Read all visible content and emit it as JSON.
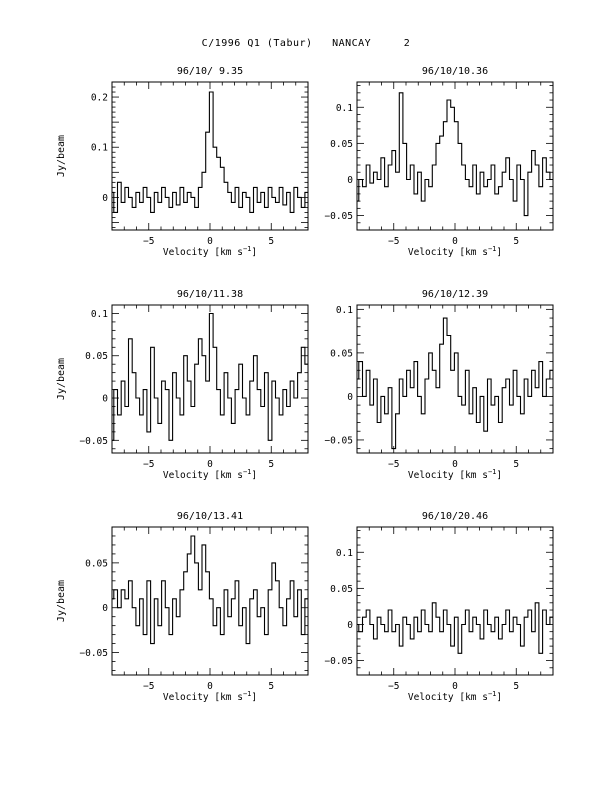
{
  "page": {
    "title": "C/1996 Q1 (Tabur)   NANCAY     2"
  },
  "chart_data": [
    {
      "type": "line",
      "title": "96/10/ 9.35",
      "xlabel": "Velocity [km s",
      "xlabel_sup": "−1",
      "xlabel_tail": "]",
      "ylabel": "Jy/beam",
      "xlim": [
        -8,
        8
      ],
      "ylim": [
        -0.065,
        0.23
      ],
      "xticks": [
        -5,
        0,
        5
      ],
      "xtick_labels": [
        "−5",
        "0",
        "5"
      ],
      "yticks": [
        0,
        0.1,
        0.2
      ],
      "ytick_labels": [
        "0",
        "0.1",
        "0.2"
      ],
      "x": [
        -8.0,
        -7.7,
        -7.4,
        -7.1,
        -6.8,
        -6.5,
        -6.2,
        -5.9,
        -5.6,
        -5.3,
        -5.0,
        -4.7,
        -4.4,
        -4.1,
        -3.8,
        -3.5,
        -3.2,
        -2.9,
        -2.6,
        -2.3,
        -2.0,
        -1.7,
        -1.4,
        -1.1,
        -0.8,
        -0.5,
        -0.2,
        0.1,
        0.4,
        0.7,
        1.0,
        1.3,
        1.6,
        1.9,
        2.2,
        2.5,
        2.8,
        3.1,
        3.4,
        3.7,
        4.0,
        4.3,
        4.6,
        4.9,
        5.2,
        5.5,
        5.8,
        6.1,
        6.4,
        6.7,
        7.0,
        7.3,
        7.6,
        7.9
      ],
      "y": [
        0.01,
        -0.03,
        0.03,
        -0.01,
        0.02,
        0.0,
        -0.02,
        0.01,
        -0.01,
        0.02,
        0.0,
        -0.03,
        0.01,
        -0.01,
        0.02,
        0.0,
        -0.02,
        0.01,
        -0.015,
        0.02,
        -0.01,
        0.01,
        0.0,
        -0.02,
        0.02,
        0.05,
        0.13,
        0.21,
        0.1,
        0.08,
        0.06,
        0.03,
        0.01,
        -0.01,
        0.02,
        -0.02,
        0.01,
        0.0,
        -0.03,
        0.02,
        -0.01,
        0.01,
        -0.02,
        0.02,
        0.0,
        -0.01,
        0.02,
        -0.015,
        0.01,
        -0.03,
        0.02,
        0.0,
        -0.02,
        0.01
      ]
    },
    {
      "type": "line",
      "title": "96/10/10.36",
      "xlabel": "Velocity [km s",
      "xlabel_sup": "−1",
      "xlabel_tail": "]",
      "ylabel": "",
      "xlim": [
        -8,
        8
      ],
      "ylim": [
        -0.07,
        0.135
      ],
      "xticks": [
        -5,
        0,
        5
      ],
      "xtick_labels": [
        "−5",
        "0",
        "5"
      ],
      "yticks": [
        -0.05,
        0,
        0.05,
        0.1
      ],
      "ytick_labels": [
        "−0.05",
        "0",
        "0.05",
        "0.1"
      ],
      "x": [
        -8.0,
        -7.7,
        -7.4,
        -7.1,
        -6.8,
        -6.5,
        -6.2,
        -5.9,
        -5.6,
        -5.3,
        -5.0,
        -4.7,
        -4.4,
        -4.1,
        -3.8,
        -3.5,
        -3.2,
        -2.9,
        -2.6,
        -2.3,
        -2.0,
        -1.7,
        -1.4,
        -1.1,
        -0.8,
        -0.5,
        -0.2,
        0.1,
        0.4,
        0.7,
        1.0,
        1.3,
        1.6,
        1.9,
        2.2,
        2.5,
        2.8,
        3.1,
        3.4,
        3.7,
        4.0,
        4.3,
        4.6,
        4.9,
        5.2,
        5.5,
        5.8,
        6.1,
        6.4,
        6.7,
        7.0,
        7.3,
        7.6,
        7.9
      ],
      "y": [
        -0.03,
        0.0,
        -0.01,
        0.02,
        -0.005,
        0.01,
        0.0,
        0.03,
        -0.01,
        0.02,
        0.04,
        0.01,
        0.12,
        0.05,
        0.0,
        0.02,
        -0.02,
        0.01,
        -0.03,
        0.0,
        -0.01,
        0.02,
        0.05,
        0.06,
        0.08,
        0.11,
        0.1,
        0.08,
        0.05,
        0.02,
        0.0,
        -0.01,
        0.02,
        -0.02,
        0.01,
        -0.01,
        0.0,
        0.02,
        -0.02,
        -0.01,
        0.01,
        0.03,
        0.0,
        -0.03,
        0.02,
        0.0,
        -0.05,
        0.01,
        0.04,
        0.02,
        -0.01,
        0.03,
        0.01,
        0.0
      ]
    },
    {
      "type": "line",
      "title": "96/10/11.38",
      "xlabel": "Velocity [km s",
      "xlabel_sup": "−1",
      "xlabel_tail": "]",
      "ylabel": "Jy/beam",
      "xlim": [
        -8,
        8
      ],
      "ylim": [
        -0.065,
        0.11
      ],
      "xticks": [
        -5,
        0,
        5
      ],
      "xtick_labels": [
        "−5",
        "0",
        "5"
      ],
      "yticks": [
        -0.05,
        0,
        0.05,
        0.1
      ],
      "ytick_labels": [
        "−0.05",
        "0",
        "0.05",
        "0.1"
      ],
      "x": [
        -8.0,
        -7.7,
        -7.4,
        -7.1,
        -6.8,
        -6.5,
        -6.2,
        -5.9,
        -5.6,
        -5.3,
        -5.0,
        -4.7,
        -4.4,
        -4.1,
        -3.8,
        -3.5,
        -3.2,
        -2.9,
        -2.6,
        -2.3,
        -2.0,
        -1.7,
        -1.4,
        -1.1,
        -0.8,
        -0.5,
        -0.2,
        0.1,
        0.4,
        0.7,
        1.0,
        1.3,
        1.6,
        1.9,
        2.2,
        2.5,
        2.8,
        3.1,
        3.4,
        3.7,
        4.0,
        4.3,
        4.6,
        4.9,
        5.2,
        5.5,
        5.8,
        6.1,
        6.4,
        6.7,
        7.0,
        7.3,
        7.6,
        7.9
      ],
      "y": [
        -0.05,
        0.01,
        -0.02,
        0.02,
        -0.01,
        0.07,
        0.03,
        0.0,
        -0.02,
        0.01,
        -0.04,
        0.06,
        0.0,
        -0.03,
        0.02,
        0.01,
        -0.05,
        0.03,
        0.0,
        -0.02,
        0.05,
        0.02,
        -0.01,
        0.04,
        0.07,
        0.05,
        0.02,
        0.1,
        0.06,
        0.01,
        -0.02,
        0.03,
        0.0,
        -0.03,
        0.01,
        0.04,
        0.0,
        -0.02,
        0.02,
        0.05,
        0.01,
        -0.01,
        0.03,
        -0.05,
        0.02,
        0.0,
        -0.02,
        0.01,
        -0.01,
        0.02,
        0.0,
        0.03,
        0.06,
        0.04
      ]
    },
    {
      "type": "line",
      "title": "96/10/12.39",
      "xlabel": "Velocity [km s",
      "xlabel_sup": "−1",
      "xlabel_tail": "]",
      "ylabel": "",
      "xlim": [
        -8,
        8
      ],
      "ylim": [
        -0.065,
        0.105
      ],
      "xticks": [
        -5,
        0,
        5
      ],
      "xtick_labels": [
        "−5",
        "0",
        "5"
      ],
      "yticks": [
        -0.05,
        0,
        0.05,
        0.1
      ],
      "ytick_labels": [
        "−0.05",
        "0",
        "0.05",
        "0.1"
      ],
      "x": [
        -8.0,
        -7.7,
        -7.4,
        -7.1,
        -6.8,
        -6.5,
        -6.2,
        -5.9,
        -5.6,
        -5.3,
        -5.0,
        -4.7,
        -4.4,
        -4.1,
        -3.8,
        -3.5,
        -3.2,
        -2.9,
        -2.6,
        -2.3,
        -2.0,
        -1.7,
        -1.4,
        -1.1,
        -0.8,
        -0.5,
        -0.2,
        0.1,
        0.4,
        0.7,
        1.0,
        1.3,
        1.6,
        1.9,
        2.2,
        2.5,
        2.8,
        3.1,
        3.4,
        3.7,
        4.0,
        4.3,
        4.6,
        4.9,
        5.2,
        5.5,
        5.8,
        6.1,
        6.4,
        6.7,
        7.0,
        7.3,
        7.6,
        7.9
      ],
      "y": [
        0.02,
        0.04,
        0.0,
        0.03,
        -0.01,
        0.02,
        -0.03,
        0.0,
        -0.02,
        0.01,
        -0.06,
        -0.02,
        0.02,
        0.0,
        0.03,
        0.01,
        0.04,
        0.0,
        -0.02,
        0.02,
        0.05,
        0.03,
        0.01,
        0.06,
        0.09,
        0.07,
        0.03,
        0.05,
        0.0,
        -0.01,
        0.03,
        -0.02,
        0.01,
        -0.03,
        0.0,
        -0.04,
        0.02,
        -0.01,
        0.0,
        -0.03,
        0.01,
        0.02,
        -0.01,
        0.03,
        0.0,
        -0.02,
        0.02,
        0.0,
        0.03,
        0.01,
        0.04,
        0.0,
        0.02,
        0.03
      ]
    },
    {
      "type": "line",
      "title": "96/10/13.41",
      "xlabel": "Velocity [km s",
      "xlabel_sup": "−1",
      "xlabel_tail": "]",
      "ylabel": "Jy/beam",
      "xlim": [
        -8,
        8
      ],
      "ylim": [
        -0.075,
        0.09
      ],
      "xticks": [
        -5,
        0,
        5
      ],
      "xtick_labels": [
        "−5",
        "0",
        "5"
      ],
      "yticks": [
        -0.05,
        0,
        0.05
      ],
      "ytick_labels": [
        "−0.05",
        "0",
        "0.05"
      ],
      "x": [
        -8.0,
        -7.7,
        -7.4,
        -7.1,
        -6.8,
        -6.5,
        -6.2,
        -5.9,
        -5.6,
        -5.3,
        -5.0,
        -4.7,
        -4.4,
        -4.1,
        -3.8,
        -3.5,
        -3.2,
        -2.9,
        -2.6,
        -2.3,
        -2.0,
        -1.7,
        -1.4,
        -1.1,
        -0.8,
        -0.5,
        -0.2,
        0.1,
        0.4,
        0.7,
        1.0,
        1.3,
        1.6,
        1.9,
        2.2,
        2.5,
        2.8,
        3.1,
        3.4,
        3.7,
        4.0,
        4.3,
        4.6,
        4.9,
        5.2,
        5.5,
        5.8,
        6.1,
        6.4,
        6.7,
        7.0,
        7.3,
        7.6,
        7.9
      ],
      "y": [
        0.01,
        0.02,
        0.0,
        0.02,
        0.01,
        0.03,
        0.0,
        -0.02,
        0.01,
        -0.03,
        0.03,
        -0.04,
        0.01,
        -0.02,
        0.03,
        0.0,
        -0.03,
        0.01,
        -0.01,
        0.02,
        0.04,
        0.06,
        0.08,
        0.05,
        0.02,
        0.07,
        0.04,
        0.01,
        -0.02,
        0.0,
        -0.03,
        0.02,
        -0.01,
        0.01,
        0.03,
        -0.02,
        0.0,
        -0.04,
        0.01,
        0.02,
        -0.01,
        0.0,
        -0.03,
        0.02,
        0.05,
        0.03,
        0.0,
        -0.02,
        0.01,
        0.03,
        -0.01,
        0.02,
        -0.03,
        0.01
      ]
    },
    {
      "type": "line",
      "title": "96/10/20.46",
      "xlabel": "Velocity [km s",
      "xlabel_sup": "−1",
      "xlabel_tail": "]",
      "ylabel": "",
      "xlim": [
        -8,
        8
      ],
      "ylim": [
        -0.07,
        0.135
      ],
      "xticks": [
        -5,
        0,
        5
      ],
      "xtick_labels": [
        "−5",
        "0",
        "5"
      ],
      "yticks": [
        -0.05,
        0,
        0.05,
        0.1
      ],
      "ytick_labels": [
        "−0.05",
        "0",
        "0.05",
        "0.1"
      ],
      "x": [
        -8.0,
        -7.7,
        -7.4,
        -7.1,
        -6.8,
        -6.5,
        -6.2,
        -5.9,
        -5.6,
        -5.3,
        -5.0,
        -4.7,
        -4.4,
        -4.1,
        -3.8,
        -3.5,
        -3.2,
        -2.9,
        -2.6,
        -2.3,
        -2.0,
        -1.7,
        -1.4,
        -1.1,
        -0.8,
        -0.5,
        -0.2,
        0.1,
        0.4,
        0.7,
        1.0,
        1.3,
        1.6,
        1.9,
        2.2,
        2.5,
        2.8,
        3.1,
        3.4,
        3.7,
        4.0,
        4.3,
        4.6,
        4.9,
        5.2,
        5.5,
        5.8,
        6.1,
        6.4,
        6.7,
        7.0,
        7.3,
        7.6,
        7.9
      ],
      "y": [
        0.0,
        -0.01,
        0.01,
        0.02,
        0.0,
        -0.02,
        0.01,
        0.0,
        -0.01,
        0.02,
        -0.01,
        0.0,
        -0.03,
        0.01,
        0.0,
        -0.02,
        0.01,
        -0.01,
        0.02,
        0.0,
        -0.01,
        0.03,
        0.01,
        -0.01,
        0.02,
        0.0,
        -0.03,
        0.01,
        -0.04,
        0.0,
        0.02,
        -0.01,
        0.01,
        0.0,
        -0.02,
        0.02,
        0.0,
        -0.01,
        0.01,
        -0.02,
        0.0,
        0.02,
        -0.01,
        0.01,
        0.0,
        -0.03,
        0.01,
        0.02,
        -0.01,
        0.03,
        -0.04,
        0.02,
        0.0,
        0.01
      ]
    }
  ]
}
